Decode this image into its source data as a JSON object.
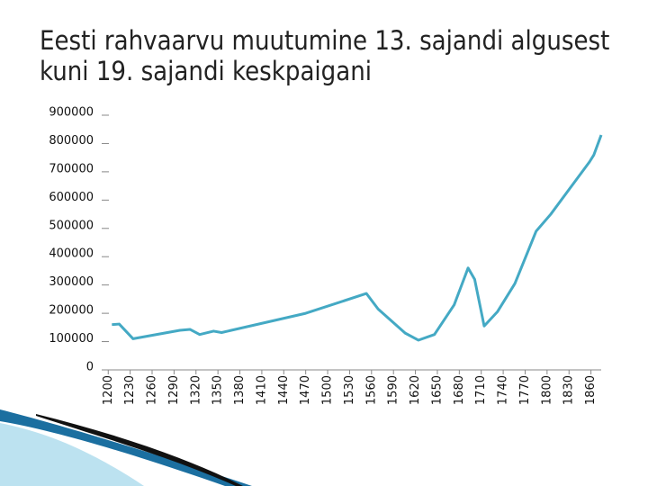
{
  "chart_data": {
    "type": "line",
    "title": "Eesti rahvaarvu muutumine 13. sajandi algusest kuni 19. sajandi keskpaigani",
    "x": [
      1205,
      1215,
      1234,
      1298,
      1312,
      1325,
      1344,
      1355,
      1470,
      1553,
      1569,
      1606,
      1624,
      1646,
      1673,
      1692,
      1701,
      1714,
      1732,
      1756,
      1785,
      1805,
      1858,
      1864,
      1874
    ],
    "series": [
      {
        "color": "#44a9c4",
        "values": [
          160000,
          162000,
          110000,
          140000,
          143000,
          125000,
          137000,
          132000,
          200000,
          270000,
          215000,
          130000,
          105000,
          125000,
          230000,
          360000,
          320000,
          155000,
          205000,
          305000,
          490000,
          550000,
          735000,
          760000,
          830000
        ]
      }
    ],
    "xlim": [
      1196,
      1874
    ],
    "xticks": [
      1200,
      1230,
      1260,
      1290,
      1320,
      1350,
      1380,
      1410,
      1440,
      1470,
      1500,
      1530,
      1560,
      1590,
      1620,
      1650,
      1680,
      1710,
      1740,
      1770,
      1800,
      1830,
      1860
    ],
    "ylim": [
      0,
      900000
    ],
    "yticks": [
      0,
      100000,
      200000,
      300000,
      400000,
      500000,
      600000,
      700000,
      800000,
      900000
    ],
    "grid": false
  }
}
